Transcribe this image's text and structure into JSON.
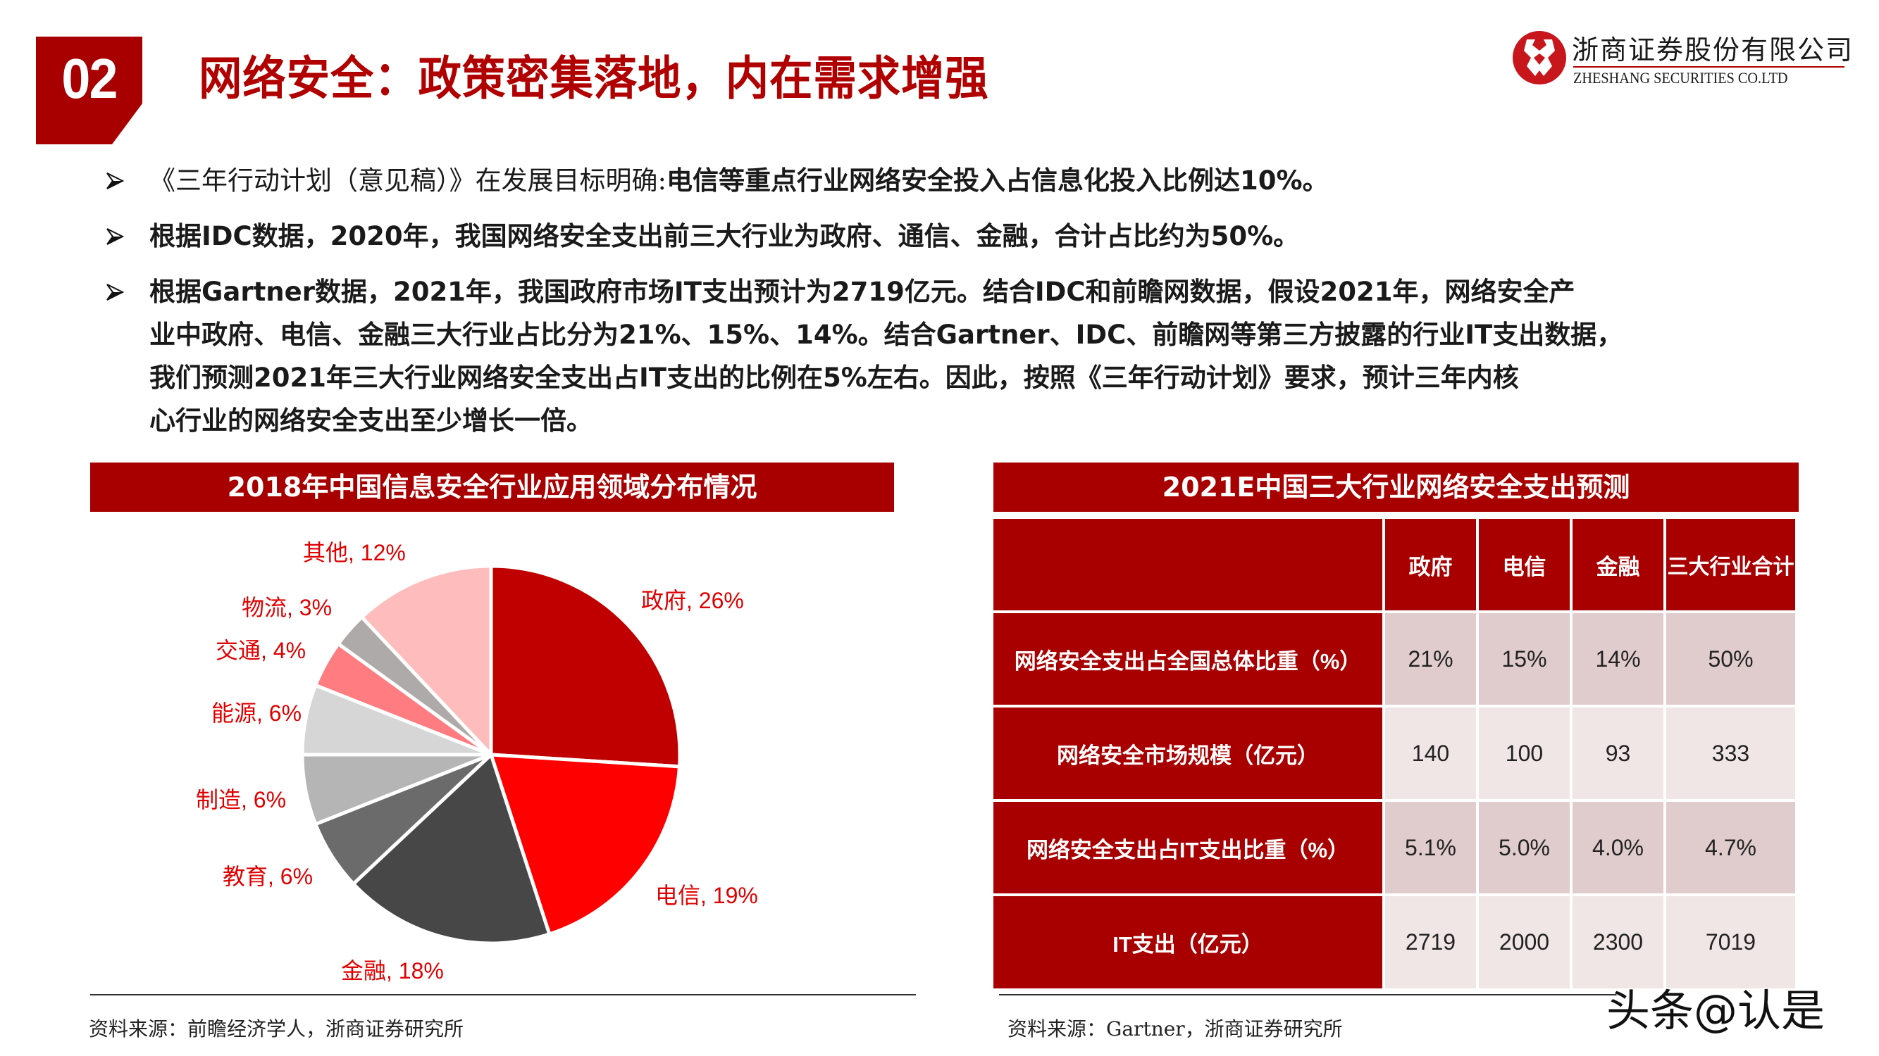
{
  "header": {
    "section_number": "02",
    "title": "网络安全：政策密集落地，内在需求增强",
    "logo": {
      "name_cn": "浙商证券股份有限公司",
      "name_en": "ZHESHANG SECURITIES CO.LTD",
      "brand_color": "#c8161d"
    }
  },
  "bullets": [
    {
      "light_part": "《三年行动计划（意见稿）》在发展目标明确:",
      "bold_part": "电信等重点行业网络安全投入占信息化投入比例达10%。"
    },
    {
      "light_part": "",
      "bold_part": "根据IDC数据，2020年，我国网络安全支出前三大行业为政府、通信、金融，合计占比约为50%。"
    },
    {
      "light_part": "",
      "lines": [
        "根据Gartner数据，2021年，我国政府市场IT支出预计为2719亿元。结合IDC和前瞻网数据，假设2021年，网络安全产",
        "业中政府、电信、金融三大行业占比分为21%、15%、14%。结合Gartner、IDC、前瞻网等第三方披露的行业IT支出数据，",
        "我们预测2021年三大行业网络安全支出占IT支出的比例在5%左右。因此，按照《三年行动计划》要求，预计三年内核",
        "心行业的网络安全支出至少增长一倍。"
      ]
    }
  ],
  "left_panel": {
    "title": "2018年中国信息安全行业应用领域分布情况",
    "source": "资料来源：前瞻经济学人，浙商证券研究所"
  },
  "right_panel": {
    "title": "2021E中国三大行业网络安全支出预测",
    "source": "资料来源：Gartner，浙商证券研究所",
    "columns": [
      "",
      "政府",
      "电信",
      "金融",
      "三大行业合计"
    ],
    "rows": [
      {
        "label": "网络安全支出占全国总体比重（%）",
        "values": [
          "21%",
          "15%",
          "14%",
          "50%"
        ]
      },
      {
        "label": "网络安全市场规模（亿元）",
        "values": [
          "140",
          "100",
          "93",
          "333"
        ]
      },
      {
        "label": "网络安全支出占IT支出比重（%）",
        "values": [
          "5.1%",
          "5.0%",
          "4.0%",
          "4.7%"
        ]
      },
      {
        "label": "IT支出（亿元）",
        "values": [
          "2719",
          "2000",
          "2300",
          "7019"
        ]
      }
    ]
  },
  "watermark": "头条@认是",
  "colors": {
    "accent_red": "#a80000",
    "title_red": "#b00000",
    "label_red": "#e00000",
    "row_dark": "#e0cccc",
    "row_light": "#f1e6e6"
  },
  "chart_data": [
    {
      "type": "pie",
      "title": "2018年中国信息安全行业应用领域分布情况",
      "categories": [
        "政府",
        "电信",
        "金融",
        "教育",
        "制造",
        "能源",
        "交通",
        "物流",
        "其他"
      ],
      "values": [
        26,
        19,
        18,
        6,
        6,
        6,
        4,
        3,
        12
      ],
      "unit": "%",
      "colors": [
        "#c00000",
        "#ff0000",
        "#474747",
        "#6b6b6b",
        "#b5b5b5",
        "#d6d6d6",
        "#ff7c80",
        "#aeaaaa",
        "#ffbcbc"
      ],
      "labels": [
        "政府, 26%",
        "电信, 19%",
        "金融, 18%",
        "教育, 6%",
        "制造, 6%",
        "能源, 6%",
        "交通, 4%",
        "物流, 3%",
        "其他, 12%"
      ],
      "start_angle_deg": 0,
      "direction": "clockwise",
      "legend": "none (data labels outside slices)"
    },
    {
      "type": "table",
      "title": "2021E中国三大行业网络安全支出预测",
      "columns": [
        "政府",
        "电信",
        "金融",
        "三大行业合计"
      ],
      "rows": [
        {
          "name": "网络安全支出占全国总体比重（%）",
          "values": [
            21,
            15,
            14,
            50
          ]
        },
        {
          "name": "网络安全市场规模（亿元）",
          "values": [
            140,
            100,
            93,
            333
          ]
        },
        {
          "name": "网络安全支出占IT支出比重（%）",
          "values": [
            5.1,
            5.0,
            4.0,
            4.7
          ]
        },
        {
          "name": "IT支出（亿元）",
          "values": [
            2719,
            2000,
            2300,
            7019
          ]
        }
      ]
    }
  ]
}
